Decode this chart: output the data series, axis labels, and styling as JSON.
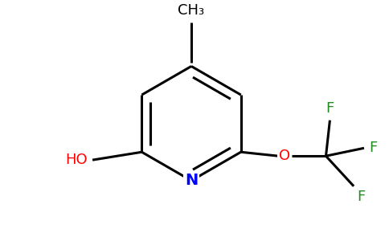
{
  "bg_color": "#ffffff",
  "bond_color": "#000000",
  "N_color": "#0000ff",
  "O_color": "#ff0000",
  "F_color": "#228B22",
  "line_width": 2.2,
  "figsize": [
    4.84,
    3.0
  ],
  "dpi": 100,
  "ch3_label": "CH₃",
  "ho_label": "HO",
  "N_label": "N",
  "O_label": "O"
}
